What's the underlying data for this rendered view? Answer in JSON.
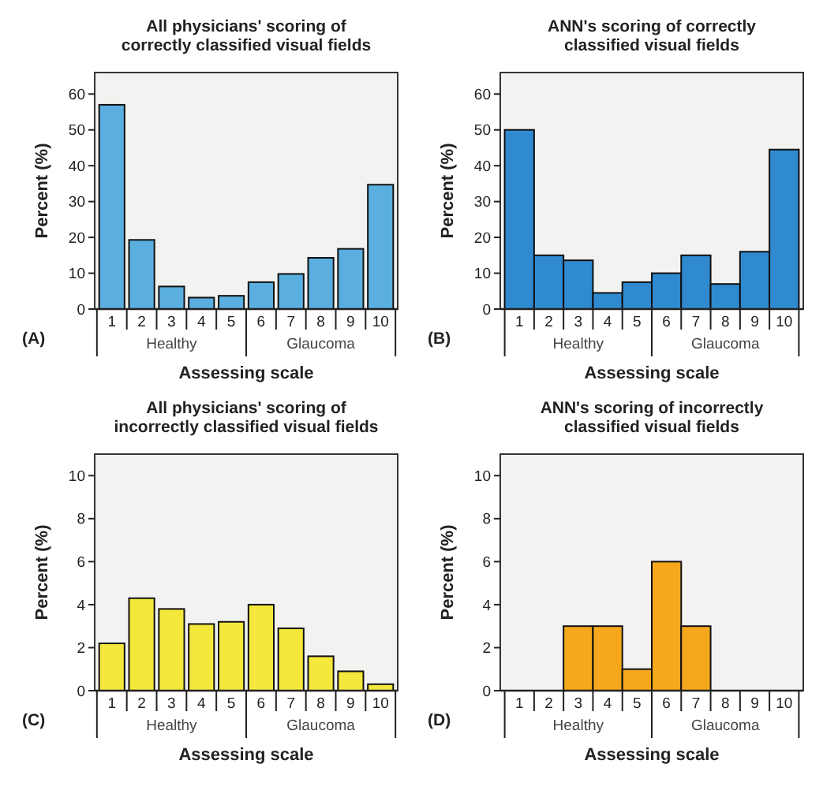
{
  "chart_data": [
    {
      "type": "bar",
      "title": "All physicians' scoring of correctly classified visual fields",
      "xlabel": "Assessing scale",
      "ylabel": "Percent (%)",
      "categories": [
        "1",
        "2",
        "3",
        "4",
        "5",
        "6",
        "7",
        "8",
        "9",
        "10"
      ],
      "values": [
        57,
        19.3,
        6.3,
        3.2,
        3.7,
        7.5,
        9.8,
        14.3,
        16.8,
        34.7
      ],
      "color": "#5aafe0",
      "ylim": [
        0,
        66
      ],
      "yticks": [
        0,
        10,
        20,
        30,
        40,
        50,
        60
      ],
      "annotations": [
        "(A)",
        "Healthy",
        "Glaucoma"
      ]
    },
    {
      "type": "bar",
      "title": "ANN's scoring of correctly classified visual fields",
      "xlabel": "Assessing scale",
      "ylabel": "Percent (%)",
      "categories": [
        "1",
        "2",
        "3",
        "4",
        "5",
        "6",
        "7",
        "8",
        "9",
        "10"
      ],
      "values": [
        50,
        15,
        13.6,
        4.5,
        7.5,
        10,
        15,
        7,
        16,
        44.5
      ],
      "color": "#2f8ad0",
      "ylim": [
        0,
        66
      ],
      "yticks": [
        0,
        10,
        20,
        30,
        40,
        50,
        60
      ],
      "annotations": [
        "(B)",
        "Healthy",
        "Glaucoma"
      ]
    },
    {
      "type": "bar",
      "title": "All physicians' scoring of incorrectly classified visual fields",
      "xlabel": "Assessing scale",
      "ylabel": "Percent (%)",
      "categories": [
        "1",
        "2",
        "3",
        "4",
        "5",
        "6",
        "7",
        "8",
        "9",
        "10"
      ],
      "values": [
        2.2,
        4.3,
        3.8,
        3.1,
        3.2,
        4,
        2.9,
        1.6,
        0.9,
        0.3
      ],
      "color": "#f5e83c",
      "ylim": [
        0,
        11
      ],
      "yticks": [
        0,
        2,
        4,
        6,
        8,
        10
      ],
      "annotations": [
        "(C)",
        "Healthy",
        "Glaucoma"
      ]
    },
    {
      "type": "bar",
      "title": "ANN's scoring of incorrectly classified visual fields",
      "xlabel": "Assessing scale",
      "ylabel": "Percent (%)",
      "categories": [
        "1",
        "2",
        "3",
        "4",
        "5",
        "6",
        "7",
        "8",
        "9",
        "10"
      ],
      "values": [
        0,
        0,
        3,
        3,
        1,
        6,
        3,
        0,
        0,
        0
      ],
      "color": "#f5a81c",
      "ylim": [
        0,
        11
      ],
      "yticks": [
        0,
        2,
        4,
        6,
        8,
        10
      ],
      "annotations": [
        "(D)",
        "Healthy",
        "Glaucoma"
      ]
    }
  ]
}
